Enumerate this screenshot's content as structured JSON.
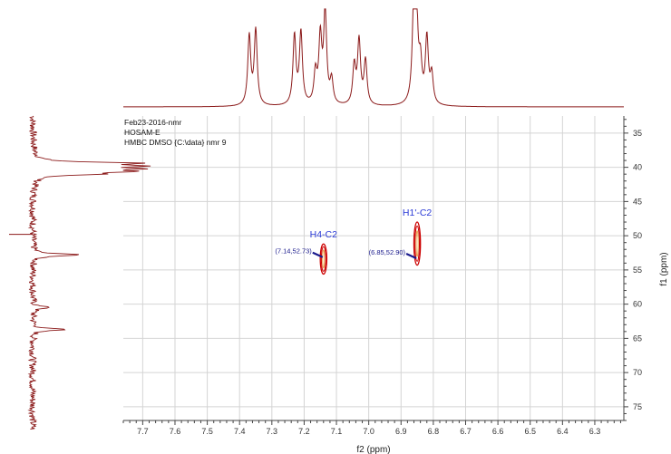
{
  "chart_data": {
    "type": "contour",
    "subtype": "2D NMR HMBC",
    "info_lines": [
      "Feb23-2016-nmr",
      "HOSAM-E",
      "HMBC DMSO {C:\\data} nmr 9"
    ],
    "xlabel": "f2 (ppm)",
    "ylabel": "f1 (ppm)",
    "x_ticks": [
      7.7,
      7.6,
      7.5,
      7.4,
      7.3,
      7.2,
      7.1,
      7.0,
      6.9,
      6.8,
      6.7,
      6.6,
      6.5,
      6.4,
      6.3
    ],
    "x_tick_labels": [
      "7.7",
      "7.6",
      "7.5",
      "7.4",
      "7.3",
      "7.2",
      "7.1",
      "7.0",
      "6.9",
      "6.8",
      "6.7",
      "6.6",
      "6.5",
      "6.4",
      "6.3"
    ],
    "y_ticks": [
      35,
      40,
      45,
      50,
      55,
      60,
      65,
      70,
      75
    ],
    "y_tick_labels": [
      "35",
      "40",
      "45",
      "50",
      "55",
      "60",
      "65",
      "70",
      "75"
    ],
    "xlim": [
      7.76,
      6.21
    ],
    "ylim": [
      32.5,
      77
    ],
    "x_reversed": true,
    "y_reversed": true,
    "grid": true,
    "colors": {
      "spectrum": "#8b1a1a",
      "contour_outer": "#cc0000",
      "contour_inner": "#e8a040",
      "label": "#2b3bd6",
      "coord": "#1a1a8c",
      "grid": "#d4d4d4"
    },
    "cross_peaks": [
      {
        "label": "H4-C2",
        "x": 7.14,
        "y": 52.73,
        "coord_label": "(7.14,52.73)",
        "y_from": 51.2,
        "y_to": 55.6
      },
      {
        "label": "H1'-C2",
        "x": 6.85,
        "y": 52.9,
        "coord_label": "(6.85,52.90)",
        "y_from": 48.0,
        "y_to": 54.3
      }
    ],
    "f2_projection_peaks": [
      {
        "x": 7.37,
        "h": 0.72
      },
      {
        "x": 7.35,
        "h": 0.78
      },
      {
        "x": 7.23,
        "h": 0.72
      },
      {
        "x": 7.21,
        "h": 0.75
      },
      {
        "x": 7.165,
        "h": 0.32
      },
      {
        "x": 7.15,
        "h": 0.68
      },
      {
        "x": 7.135,
        "h": 0.96
      },
      {
        "x": 7.115,
        "h": 0.25
      },
      {
        "x": 7.045,
        "h": 0.4
      },
      {
        "x": 7.03,
        "h": 0.66
      },
      {
        "x": 7.01,
        "h": 0.46
      },
      {
        "x": 6.86,
        "h": 1.0
      },
      {
        "x": 6.853,
        "h": 0.98
      },
      {
        "x": 6.84,
        "h": 0.38
      },
      {
        "x": 6.82,
        "h": 0.68
      },
      {
        "x": 6.805,
        "h": 0.3
      }
    ],
    "f1_projection_peaks": [
      {
        "y": 39.4,
        "h": 1.0
      },
      {
        "y": 39.8,
        "h": 0.95
      },
      {
        "y": 40.2,
        "h": 0.9
      },
      {
        "y": 40.6,
        "h": 0.85
      },
      {
        "y": 41.0,
        "h": 0.6
      },
      {
        "y": 52.8,
        "h": 0.55
      },
      {
        "y": 60.5,
        "h": 0.2
      },
      {
        "y": 63.7,
        "h": 0.35
      }
    ]
  }
}
